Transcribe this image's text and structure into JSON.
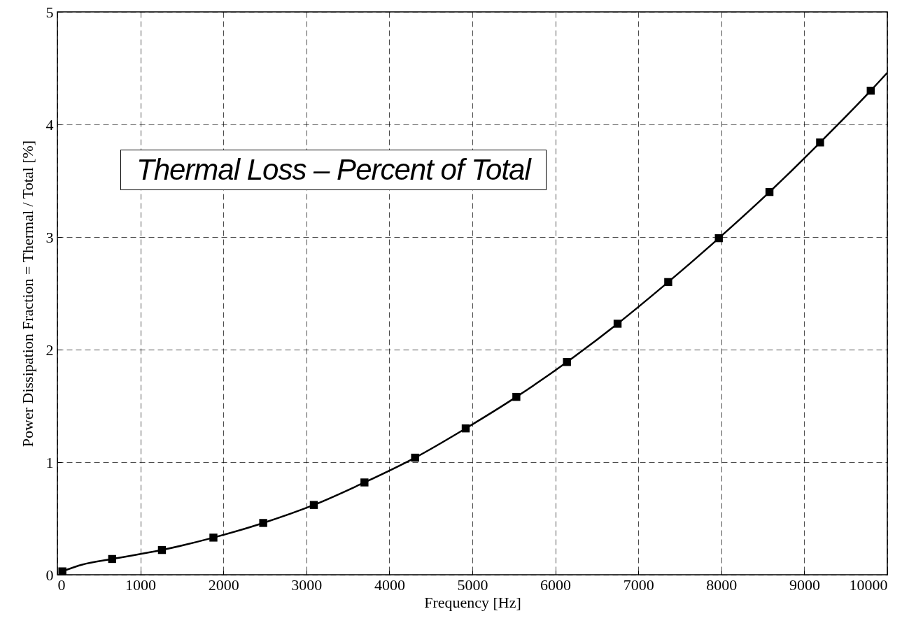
{
  "chart_data": {
    "type": "line",
    "xlabel": "Frequency [Hz]",
    "ylabel": "Power Dissipation Fraction = Thermal / Total [%]",
    "annotations": [
      "Thermal Loss – Percent of Total"
    ],
    "xlim": [
      0,
      10000
    ],
    "ylim": [
      0,
      5
    ],
    "xticks": [
      0,
      1000,
      2000,
      3000,
      4000,
      5000,
      6000,
      7000,
      8000,
      9000,
      10000
    ],
    "yticks": [
      0,
      1,
      2,
      3,
      4,
      5
    ],
    "grid": true,
    "series": [
      {
        "color": "#000000",
        "marker": "none",
        "line_style": "solid",
        "x": [
          60,
          300,
          660,
          1260,
          1880,
          2480,
          3090,
          3700,
          4310,
          4920,
          5530,
          6140,
          6750,
          7360,
          7970,
          8580,
          9190,
          9800,
          10000
        ],
        "values": [
          0.03,
          0.09,
          0.14,
          0.22,
          0.33,
          0.46,
          0.62,
          0.82,
          1.04,
          1.3,
          1.58,
          1.89,
          2.23,
          2.6,
          2.99,
          3.4,
          3.84,
          4.3,
          4.46
        ]
      },
      {
        "type": "scatter",
        "color": "#000000",
        "marker": "square",
        "x": [
          60,
          660,
          1260,
          1880,
          2480,
          3090,
          3700,
          4310,
          4920,
          5530,
          6140,
          6750,
          7360,
          7970,
          8580,
          9190,
          9800
        ],
        "values": [
          0.03,
          0.14,
          0.22,
          0.33,
          0.46,
          0.62,
          0.82,
          1.04,
          1.3,
          1.58,
          1.89,
          2.23,
          2.6,
          2.99,
          3.4,
          3.84,
          4.3
        ]
      }
    ]
  }
}
